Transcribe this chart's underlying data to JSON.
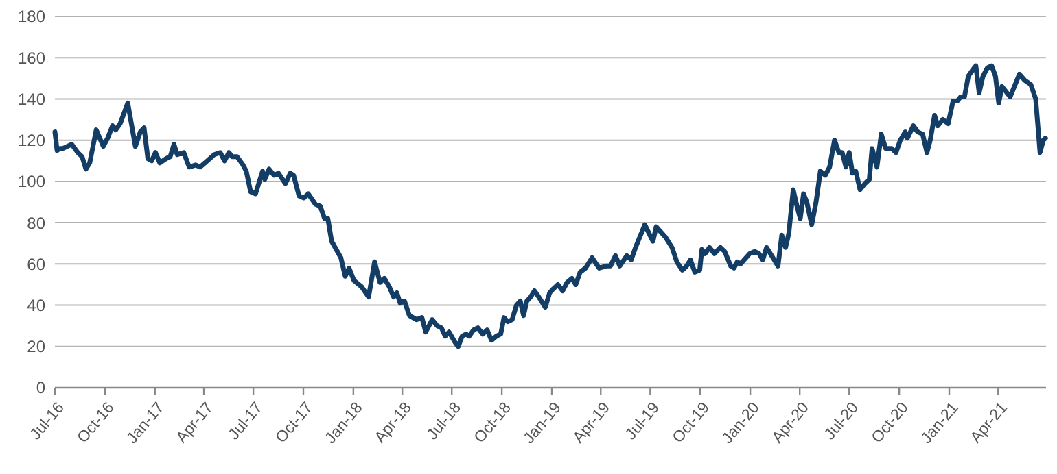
{
  "chart_data": {
    "type": "line",
    "x": [
      "2016-07-01",
      "2016-07-05",
      "2016-07-10",
      "2016-07-16",
      "2016-08-01",
      "2016-08-12",
      "2016-08-20",
      "2016-08-27",
      "2016-09-03",
      "2016-09-15",
      "2016-09-28",
      "2016-10-06",
      "2016-10-15",
      "2016-10-21",
      "2016-10-29",
      "2016-11-12",
      "2016-11-18",
      "2016-11-26",
      "2016-12-05",
      "2016-12-12",
      "2016-12-19",
      "2016-12-26",
      "2017-01-02",
      "2017-01-10",
      "2017-01-21",
      "2017-01-29",
      "2017-02-05",
      "2017-02-11",
      "2017-02-23",
      "2017-03-05",
      "2017-03-17",
      "2017-03-25",
      "2017-04-03",
      "2017-04-20",
      "2017-05-01",
      "2017-05-09",
      "2017-05-17",
      "2017-05-23",
      "2017-06-01",
      "2017-06-12",
      "2017-06-18",
      "2017-06-26",
      "2017-07-05",
      "2017-07-18",
      "2017-07-22",
      "2017-07-30",
      "2017-08-08",
      "2017-08-16",
      "2017-08-29",
      "2017-09-07",
      "2017-09-13",
      "2017-09-23",
      "2017-10-02",
      "2017-10-10",
      "2017-10-23",
      "2017-11-01",
      "2017-11-09",
      "2017-11-15",
      "2017-11-22",
      "2017-12-09",
      "2017-12-17",
      "2017-12-24",
      "2018-01-02",
      "2018-01-16",
      "2018-01-29",
      "2018-02-09",
      "2018-02-19",
      "2018-02-27",
      "2018-03-08",
      "2018-03-16",
      "2018-03-22",
      "2018-03-28",
      "2018-04-05",
      "2018-04-14",
      "2018-04-27",
      "2018-05-07",
      "2018-05-14",
      "2018-05-26",
      "2018-06-04",
      "2018-06-12",
      "2018-06-19",
      "2018-06-26",
      "2018-07-07",
      "2018-07-13",
      "2018-07-20",
      "2018-07-27",
      "2018-08-02",
      "2018-08-10",
      "2018-08-18",
      "2018-08-27",
      "2018-09-04",
      "2018-09-12",
      "2018-09-21",
      "2018-09-29",
      "2018-10-05",
      "2018-10-12",
      "2018-10-20",
      "2018-10-28",
      "2018-11-04",
      "2018-11-10",
      "2018-11-16",
      "2018-11-23",
      "2018-11-30",
      "2018-12-08",
      "2018-12-20",
      "2018-12-28",
      "2019-01-04",
      "2019-01-12",
      "2019-01-21",
      "2019-01-29",
      "2019-02-07",
      "2019-02-14",
      "2019-02-22",
      "2019-03-04",
      "2019-03-16",
      "2019-03-29",
      "2019-04-11",
      "2019-04-19",
      "2019-04-28",
      "2019-05-06",
      "2019-05-19",
      "2019-05-27",
      "2019-06-04",
      "2019-06-21",
      "2019-07-06",
      "2019-07-12",
      "2019-07-29",
      "2019-08-10",
      "2019-08-19",
      "2019-08-29",
      "2019-09-06",
      "2019-09-13",
      "2019-09-21",
      "2019-09-30",
      "2019-10-04",
      "2019-10-10",
      "2019-10-18",
      "2019-10-27",
      "2019-11-07",
      "2019-11-15",
      "2019-11-26",
      "2019-12-02",
      "2019-12-08",
      "2019-12-14",
      "2019-12-31",
      "2020-01-09",
      "2020-01-17",
      "2020-01-24",
      "2020-01-31",
      "2020-02-07",
      "2020-02-21",
      "2020-02-28",
      "2020-03-06",
      "2020-03-12",
      "2020-03-20",
      "2020-03-26",
      "2020-04-02",
      "2020-04-08",
      "2020-04-14",
      "2020-04-23",
      "2020-05-01",
      "2020-05-09",
      "2020-05-18",
      "2020-05-26",
      "2020-06-04",
      "2020-06-12",
      "2020-06-18",
      "2020-06-25",
      "2020-07-01",
      "2020-07-07",
      "2020-07-13",
      "2020-07-21",
      "2020-07-30",
      "2020-08-07",
      "2020-08-12",
      "2020-08-21",
      "2020-08-29",
      "2020-09-06",
      "2020-09-17",
      "2020-09-25",
      "2020-10-03",
      "2020-10-12",
      "2020-10-16",
      "2020-10-27",
      "2020-11-04",
      "2020-11-13",
      "2020-11-21",
      "2020-11-27",
      "2020-12-05",
      "2020-12-11",
      "2020-12-20",
      "2020-12-30",
      "2021-01-08",
      "2021-01-16",
      "2021-01-22",
      "2021-01-29",
      "2021-02-05",
      "2021-02-13",
      "2021-02-19",
      "2021-02-25",
      "2021-03-04",
      "2021-03-12",
      "2021-03-20",
      "2021-03-27",
      "2021-04-02",
      "2021-04-08",
      "2021-04-23",
      "2021-05-10",
      "2021-05-20",
      "2021-05-31",
      "2021-06-09",
      "2021-06-17",
      "2021-06-23",
      "2021-06-27"
    ],
    "series": [
      {
        "color": "#143d66",
        "values": [
          124,
          115,
          116,
          116,
          118,
          114,
          112,
          106,
          109,
          125,
          117,
          121,
          127,
          125,
          128,
          138,
          129,
          117,
          124,
          126,
          111,
          110,
          114,
          109,
          111,
          112,
          118,
          113,
          114,
          107,
          108,
          107,
          109,
          113,
          114,
          110,
          114,
          112,
          112,
          108,
          105,
          95,
          94,
          105,
          101,
          106,
          103,
          104,
          99,
          104,
          103,
          93,
          92,
          94,
          89,
          88,
          82,
          82,
          71,
          63,
          54,
          58,
          52,
          49,
          44,
          61,
          51,
          53,
          49,
          44,
          46,
          41,
          42,
          35,
          33,
          34,
          27,
          33,
          30,
          29,
          25,
          27,
          22,
          20,
          25,
          26,
          25,
          28,
          29,
          26,
          28,
          23,
          25,
          26,
          34,
          32,
          33,
          40,
          42,
          35,
          42,
          44,
          47,
          44,
          39,
          46,
          48,
          50,
          47,
          51,
          53,
          50,
          56,
          58,
          63,
          58,
          59,
          59,
          64,
          59,
          64,
          62,
          68,
          79,
          71,
          78,
          73,
          68,
          61,
          57,
          59,
          62,
          56,
          57,
          67,
          65,
          68,
          65,
          68,
          66,
          59,
          58,
          61,
          60,
          65,
          66,
          65,
          62,
          68,
          65,
          59,
          74,
          68,
          75,
          96,
          89,
          82,
          94,
          90,
          79,
          90,
          105,
          103,
          107,
          120,
          114,
          114,
          107,
          114,
          104,
          105,
          96,
          99,
          101,
          116,
          107,
          123,
          116,
          116,
          114,
          120,
          124,
          121,
          127,
          124,
          123,
          114,
          120,
          132,
          127,
          130,
          128,
          139,
          139,
          141,
          141,
          151,
          154,
          156,
          143,
          151,
          155,
          156,
          151,
          138,
          146,
          141,
          152,
          149,
          147,
          140,
          114,
          120,
          121
        ]
      }
    ],
    "xlim": [
      "2016-07-01",
      "2021-06-28"
    ],
    "xticks": [
      {
        "value": "2016-07-01",
        "label": "Jul-16"
      },
      {
        "value": "2016-10-01",
        "label": "Oct-16"
      },
      {
        "value": "2017-01-01",
        "label": "Jan-17"
      },
      {
        "value": "2017-04-01",
        "label": "Apr-17"
      },
      {
        "value": "2017-07-01",
        "label": "Jul-17"
      },
      {
        "value": "2017-10-01",
        "label": "Oct-17"
      },
      {
        "value": "2018-01-01",
        "label": "Jan-18"
      },
      {
        "value": "2018-04-01",
        "label": "Apr-18"
      },
      {
        "value": "2018-07-01",
        "label": "Jul-18"
      },
      {
        "value": "2018-10-01",
        "label": "Oct-18"
      },
      {
        "value": "2019-01-01",
        "label": "Jan-19"
      },
      {
        "value": "2019-04-01",
        "label": "Apr-19"
      },
      {
        "value": "2019-07-01",
        "label": "Jul-19"
      },
      {
        "value": "2019-10-01",
        "label": "Oct-19"
      },
      {
        "value": "2020-01-01",
        "label": "Jan-20"
      },
      {
        "value": "2020-04-01",
        "label": "Apr-20"
      },
      {
        "value": "2020-07-01",
        "label": "Jul-20"
      },
      {
        "value": "2020-10-01",
        "label": "Oct-20"
      },
      {
        "value": "2021-01-01",
        "label": "Jan-21"
      },
      {
        "value": "2021-04-01",
        "label": "Apr-21"
      }
    ],
    "ylim": [
      0,
      180
    ],
    "yticks": [
      0,
      20,
      40,
      60,
      80,
      100,
      120,
      140,
      160,
      180
    ],
    "grid": "y",
    "marker": "none",
    "line_style": "solid"
  }
}
